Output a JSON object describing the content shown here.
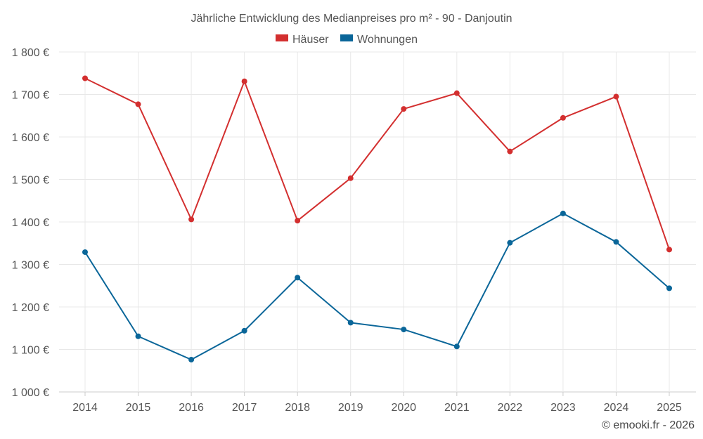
{
  "chart_data": {
    "type": "line",
    "title": "Jährliche Entwicklung des Medianpreises pro m² - 90 - Danjoutin",
    "categories": [
      "2014",
      "2015",
      "2016",
      "2017",
      "2018",
      "2019",
      "2020",
      "2021",
      "2022",
      "2023",
      "2024",
      "2025"
    ],
    "series": [
      {
        "name": "Häuser",
        "color": "#d32f2f",
        "values": [
          1738,
          1677,
          1406,
          1731,
          1403,
          1503,
          1666,
          1703,
          1566,
          1645,
          1695,
          1335
        ]
      },
      {
        "name": "Wohnungen",
        "color": "#0a6699",
        "values": [
          1329,
          1131,
          1076,
          1144,
          1269,
          1163,
          1147,
          1107,
          1351,
          1420,
          1353,
          1244
        ]
      }
    ],
    "yticks": [
      "1 000 €",
      "1 100 €",
      "1 200 €",
      "1 300 €",
      "1 400 €",
      "1 500 €",
      "1 600 €",
      "1 700 €",
      "1 800 €"
    ],
    "ylim": [
      1000,
      1800
    ],
    "grid": true,
    "legend": "top-center",
    "credit": "© emooki.fr - 2026"
  }
}
